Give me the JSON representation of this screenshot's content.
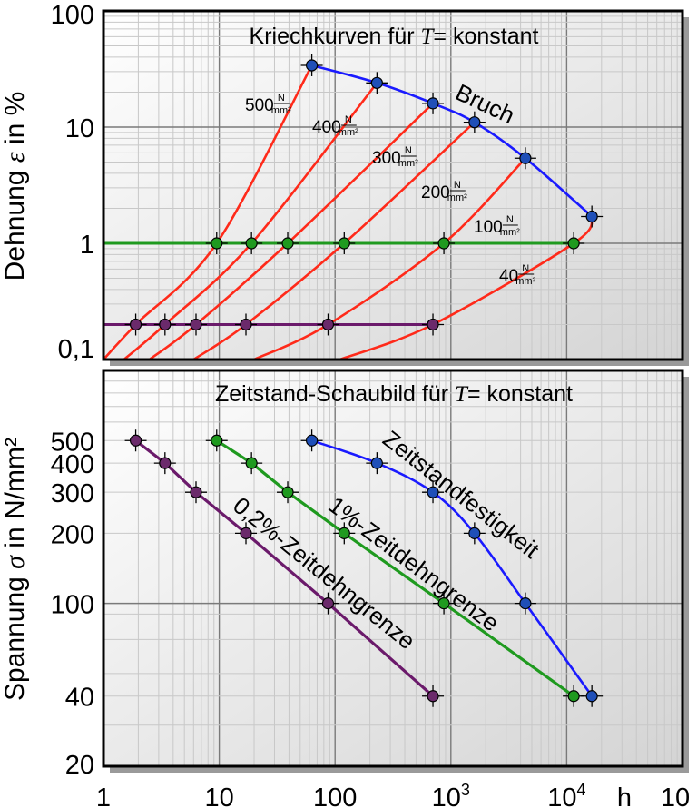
{
  "chart_data": [
    {
      "panel": "top",
      "type": "line",
      "title": "Kriechkurven für T= konstant",
      "title_parts": {
        "before": "Kriechkurven für ",
        "var": "T",
        "after": "= konstant"
      },
      "ylabel": "Dehnung ε in %",
      "ylabel_parts": {
        "before": "Dehnung ",
        "var": "ε",
        "after": " in %"
      },
      "x_scale": "log",
      "y_scale": "log",
      "xlim": [
        1,
        100000
      ],
      "ylim": [
        0.1,
        100
      ],
      "y_ticks": [
        {
          "value": 100,
          "label": "100"
        },
        {
          "value": 10,
          "label": "10"
        },
        {
          "value": 1,
          "label": "1"
        },
        {
          "value": 0.1,
          "label": "0,1"
        }
      ],
      "grid": true,
      "creep_curves": [
        {
          "stress": "500",
          "unit_num": "N",
          "unit_den": "mm²",
          "points": [
            [
              1,
              0.1
            ],
            [
              1.9,
              0.2
            ],
            [
              9.5,
              1
            ],
            [
              63,
              34
            ]
          ]
        },
        {
          "stress": "400",
          "unit_num": "N",
          "unit_den": "mm²",
          "points": [
            [
              1.5,
              0.1
            ],
            [
              3.4,
              0.2
            ],
            [
              19,
              1
            ],
            [
              230,
              24
            ]
          ]
        },
        {
          "stress": "300",
          "unit_num": "N",
          "unit_den": "mm²",
          "points": [
            [
              2.5,
              0.1
            ],
            [
              6.3,
              0.2
            ],
            [
              39,
              1
            ],
            [
              700,
              16
            ]
          ]
        },
        {
          "stress": "200",
          "unit_num": "N",
          "unit_den": "mm²",
          "points": [
            [
              6,
              0.1
            ],
            [
              17,
              0.2
            ],
            [
              120,
              1
            ],
            [
              1600,
              11
            ]
          ]
        },
        {
          "stress": "100",
          "unit_num": "N",
          "unit_den": "mm²",
          "points": [
            [
              20,
              0.1
            ],
            [
              87,
              0.2
            ],
            [
              870,
              1
            ],
            [
              4400,
              5.4
            ]
          ]
        },
        {
          "stress": "40",
          "unit_num": "N",
          "unit_den": "mm²",
          "points": [
            [
              110,
              0.1
            ],
            [
              700,
              0.2
            ],
            [
              11500,
              1
            ],
            [
              16500,
              1.7
            ]
          ]
        }
      ],
      "fracture_series": {
        "name": "Bruch",
        "points": [
          [
            63,
            34
          ],
          [
            230,
            24
          ],
          [
            700,
            16
          ],
          [
            1600,
            11
          ],
          [
            4400,
            5.4
          ],
          [
            16500,
            1.7
          ]
        ]
      },
      "strain_1_percent": {
        "y": 1,
        "x_points": [
          9.5,
          19,
          39,
          120,
          870,
          11500
        ]
      },
      "strain_02_percent": {
        "y": 0.2,
        "x_points": [
          1.9,
          3.4,
          6.3,
          17,
          87,
          700
        ]
      }
    },
    {
      "panel": "bottom",
      "type": "line",
      "title": "Zeitstand-Schaubild für T= konstant",
      "title_parts": {
        "before": "Zeitstand-Schaubild für ",
        "var": "T",
        "after": "= konstant"
      },
      "ylabel": "Spannung σ in N/mm²",
      "ylabel_parts": {
        "before": "Spannung ",
        "var": "σ",
        "after": " in N/mm²"
      },
      "x_scale": "log",
      "y_scale": "log",
      "xlim": [
        1,
        100000
      ],
      "ylim": [
        20,
        1000
      ],
      "x_ticks": [
        {
          "value": 1,
          "label": "1",
          "sup": ""
        },
        {
          "value": 10,
          "label": "10",
          "sup": ""
        },
        {
          "value": 100,
          "label": "100",
          "sup": ""
        },
        {
          "value": 1000,
          "label": "10",
          "sup": "3"
        },
        {
          "value": 10000,
          "label": "10",
          "sup": "4"
        },
        {
          "value": 100000,
          "label": "10",
          "sup": ""
        }
      ],
      "x_unit": "h",
      "y_ticks": [
        {
          "value": 500,
          "label": "500"
        },
        {
          "value": 400,
          "label": "400"
        },
        {
          "value": 300,
          "label": "300"
        },
        {
          "value": 200,
          "label": "200"
        },
        {
          "value": 100,
          "label": "100"
        },
        {
          "value": 40,
          "label": "40"
        },
        {
          "value": 20,
          "label": "20"
        }
      ],
      "grid": true,
      "series": [
        {
          "name": "Zeitstandfestigkeit",
          "points": [
            [
              63,
              500
            ],
            [
              230,
              400
            ],
            [
              700,
              300
            ],
            [
              1600,
              200
            ],
            [
              4400,
              100
            ],
            [
              16500,
              40
            ]
          ]
        },
        {
          "name": "1%-Zeitdehngrenze",
          "points": [
            [
              9.5,
              500
            ],
            [
              19,
              400
            ],
            [
              39,
              300
            ],
            [
              120,
              200
            ],
            [
              870,
              100
            ],
            [
              11500,
              40
            ]
          ]
        },
        {
          "name": "0,2%-Zeitdehngrenze",
          "points": [
            [
              1.9,
              500
            ],
            [
              3.4,
              400
            ],
            [
              6.3,
              300
            ],
            [
              17,
              200
            ],
            [
              87,
              100
            ],
            [
              700,
              40
            ]
          ]
        }
      ]
    }
  ],
  "colors": {
    "creep": "#ff2a1a",
    "fracture": "#1a1aff",
    "strain_1": "#1f9a1f",
    "strain_02": "#6b1a6b",
    "marker_blue": "#1f4fb8",
    "marker_green": "#1f9a1f",
    "marker_purple": "#6b2a6b",
    "marker_purple_line": "#6b2a6b",
    "grid_minor": "#c8c8c8",
    "grid_major": "#7a7a7a",
    "panel_bg_from": "#ffffff",
    "panel_bg_to": "#d4d4d4"
  }
}
